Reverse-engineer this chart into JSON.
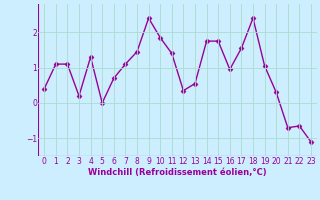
{
  "x": [
    0,
    1,
    2,
    3,
    4,
    5,
    6,
    7,
    8,
    9,
    10,
    11,
    12,
    13,
    14,
    15,
    16,
    17,
    18,
    19,
    20,
    21,
    22,
    23
  ],
  "y": [
    0.4,
    1.1,
    1.1,
    0.2,
    1.3,
    0.0,
    0.7,
    1.1,
    1.45,
    2.4,
    1.85,
    1.4,
    0.35,
    0.55,
    1.75,
    1.75,
    0.95,
    1.55,
    2.4,
    1.05,
    0.3,
    -0.7,
    -0.65,
    -1.1
  ],
  "line_color": "#990099",
  "marker": "D",
  "markersize": 2.5,
  "linewidth": 1.0,
  "xlabel": "Windchill (Refroidissement éolien,°C)",
  "xlabel_fontsize": 6,
  "bg_color": "#cceeff",
  "grid_color": "#aaddcc",
  "tick_color": "#990099",
  "label_color": "#990099",
  "ylim": [
    -1.5,
    2.8
  ],
  "yticks": [
    -1,
    0,
    1,
    2
  ],
  "xlim": [
    -0.5,
    23.5
  ],
  "xticks": [
    0,
    1,
    2,
    3,
    4,
    5,
    6,
    7,
    8,
    9,
    10,
    11,
    12,
    13,
    14,
    15,
    16,
    17,
    18,
    19,
    20,
    21,
    22,
    23
  ],
  "tick_fontsize": 5.5
}
